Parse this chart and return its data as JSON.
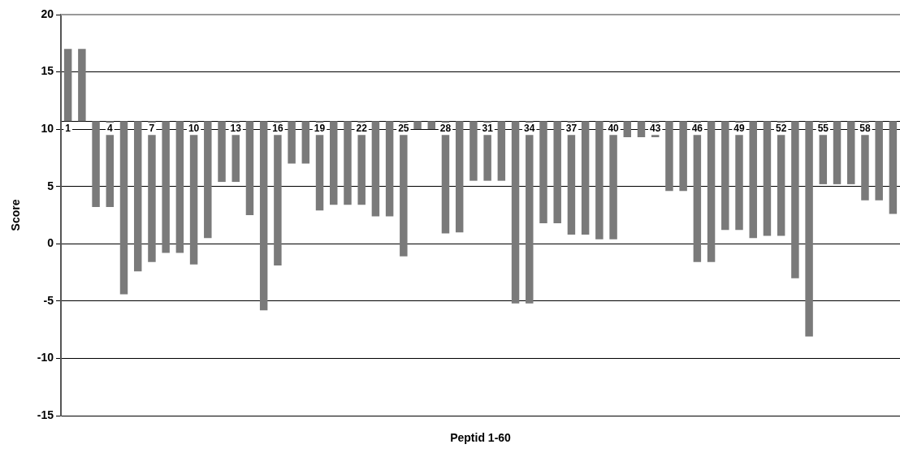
{
  "chart_data": {
    "type": "bar",
    "xlabel": "Peptid 1-60",
    "ylabel": "Score",
    "categories": [
      "1",
      null,
      null,
      "4",
      null,
      null,
      "7",
      null,
      null,
      "10",
      null,
      null,
      "13",
      null,
      null,
      "16",
      null,
      null,
      "19",
      null,
      null,
      "22",
      null,
      null,
      "25",
      null,
      null,
      "28",
      null,
      null,
      "31",
      null,
      null,
      "34",
      null,
      null,
      "37",
      null,
      null,
      "40",
      null,
      null,
      "43",
      null,
      null,
      "46",
      null,
      null,
      "49",
      null,
      null,
      "52",
      null,
      null,
      "55",
      null,
      null,
      "58",
      null,
      null
    ],
    "base": [
      10.7,
      10.7,
      10.7,
      10.7,
      10.7,
      10.7,
      10.7,
      10.7,
      10.7,
      10.7,
      10.7,
      10.7,
      10.7,
      10.7,
      10.7,
      10.7,
      10.7,
      10.7,
      10.7,
      10.7,
      10.7,
      10.7,
      10.7,
      10.7,
      10.7,
      10.7,
      10.7,
      10.7,
      10.7,
      10.7,
      10.7,
      10.7,
      10.7,
      10.7,
      10.7,
      10.7,
      10.7,
      10.7,
      10.7,
      10.7,
      10.7,
      10.7,
      10.7,
      10.7,
      10.7,
      10.7,
      10.7,
      10.7,
      10.7,
      10.7,
      10.7,
      10.7,
      10.7,
      10.7,
      10.7,
      10.7,
      10.7,
      10.7,
      10.7,
      10.7
    ],
    "values": [
      6.3,
      6.3,
      -7.5,
      -7.5,
      -15.1,
      -13.1,
      -12.3,
      -11.5,
      -11.5,
      -12.5,
      -10.2,
      -5.3,
      -5.3,
      -8.2,
      -16.5,
      -12.6,
      -3.7,
      -3.7,
      -7.8,
      -7.3,
      -7.3,
      -7.3,
      -8.3,
      -8.3,
      -11.8,
      -0.7,
      -0.7,
      -9.8,
      -9.7,
      -5.2,
      -5.2,
      -5.2,
      -15.9,
      -15.9,
      -8.9,
      -8.9,
      -9.9,
      -9.9,
      -10.3,
      -10.3,
      -1.4,
      -1.4,
      -1.4,
      -6.1,
      -6.1,
      -12.3,
      -12.3,
      -9.5,
      -9.5,
      -10.2,
      -10.0,
      -10.0,
      -13.7,
      -18.8,
      -5.5,
      -5.5,
      -5.5,
      -6.9,
      -6.9,
      -8.1
    ],
    "color": "#7a7a7a",
    "ylim": [
      -15,
      20
    ],
    "yticks": [
      -15,
      -10,
      -5,
      0,
      5,
      10,
      15,
      20
    ],
    "grid": "y",
    "legend": false
  }
}
